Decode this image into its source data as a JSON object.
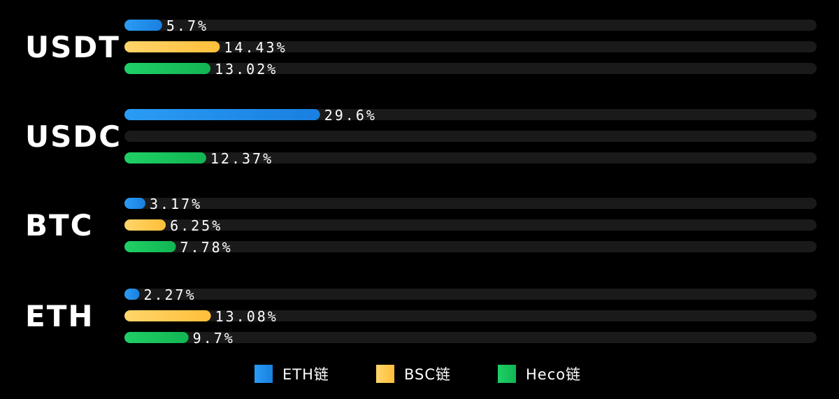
{
  "chart_data": {
    "type": "bar",
    "orientation": "horizontal",
    "categories": [
      "USDT",
      "USDC",
      "BTC",
      "ETH"
    ],
    "series": [
      {
        "name": "ETH链",
        "color": "#1f8ff0",
        "values": [
          5.7,
          29.6,
          3.17,
          2.27
        ],
        "labels": [
          "5.7%",
          "29.6%",
          "3.17%",
          "2.27%"
        ]
      },
      {
        "name": "BSC链",
        "color": "#ffc94d",
        "values": [
          14.43,
          null,
          6.25,
          13.08
        ],
        "labels": [
          "14.43%",
          "",
          "6.25%",
          "13.08%"
        ]
      },
      {
        "name": "Heco链",
        "color": "#16c65a",
        "values": [
          13.02,
          12.37,
          7.78,
          9.7
        ],
        "labels": [
          "13.02%",
          "12.37%",
          "7.78%",
          "9.7%"
        ]
      }
    ],
    "xlim": [
      0,
      100
    ],
    "title": "",
    "xlabel": "",
    "ylabel": "",
    "grid": false,
    "legend": "bottom-center"
  },
  "colors": {
    "background": "#000000",
    "track": "#1a1a1a"
  }
}
